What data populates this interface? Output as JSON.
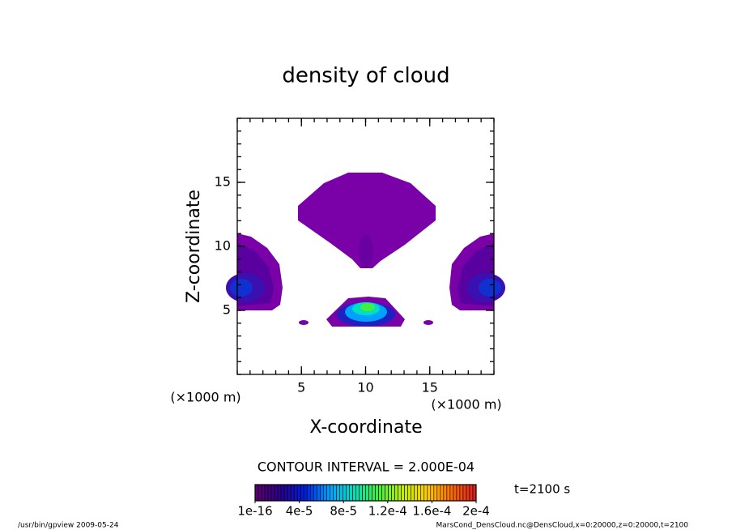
{
  "chart_data": {
    "type": "contour",
    "title": "density of cloud",
    "xlabel": "X-coordinate",
    "ylabel": "Z-coordinate",
    "xunits": "(×1000 m)",
    "yunits": "(×1000 m)",
    "xlim": [
      0,
      20
    ],
    "ylim": [
      0,
      20
    ],
    "xticks": [
      5,
      10,
      15
    ],
    "yticks": [
      5,
      10,
      15
    ],
    "minor_tick_step": 1,
    "contour_interval": "CONTOUR INTERVAL = 2.000E-04",
    "time": "t=2100 s",
    "colorbar": {
      "lim": [
        1e-16,
        0.0002
      ],
      "ticks": [
        {
          "value": 1e-16,
          "label": "1e-16"
        },
        {
          "value": 4e-05,
          "label": "4e-5"
        },
        {
          "value": 8e-05,
          "label": "8e-5"
        },
        {
          "value": 0.00012,
          "label": "1.2e-4"
        },
        {
          "value": 0.00016,
          "label": "1.6e-4"
        },
        {
          "value": 0.0002,
          "label": "2e-4"
        }
      ],
      "colormap": [
        "#5a0070",
        "#2a0090",
        "#0020e0",
        "#00a0ff",
        "#00e0c0",
        "#40f040",
        "#c0f000",
        "#ffd000",
        "#ff7000",
        "#e02020"
      ]
    },
    "footer_left": "/usr/bin/gpview  2009-05-24",
    "footer_right": "MarsCond_DensCloud.nc@DensCloud,x=0:20000,z=0:20000,t=2100"
  }
}
